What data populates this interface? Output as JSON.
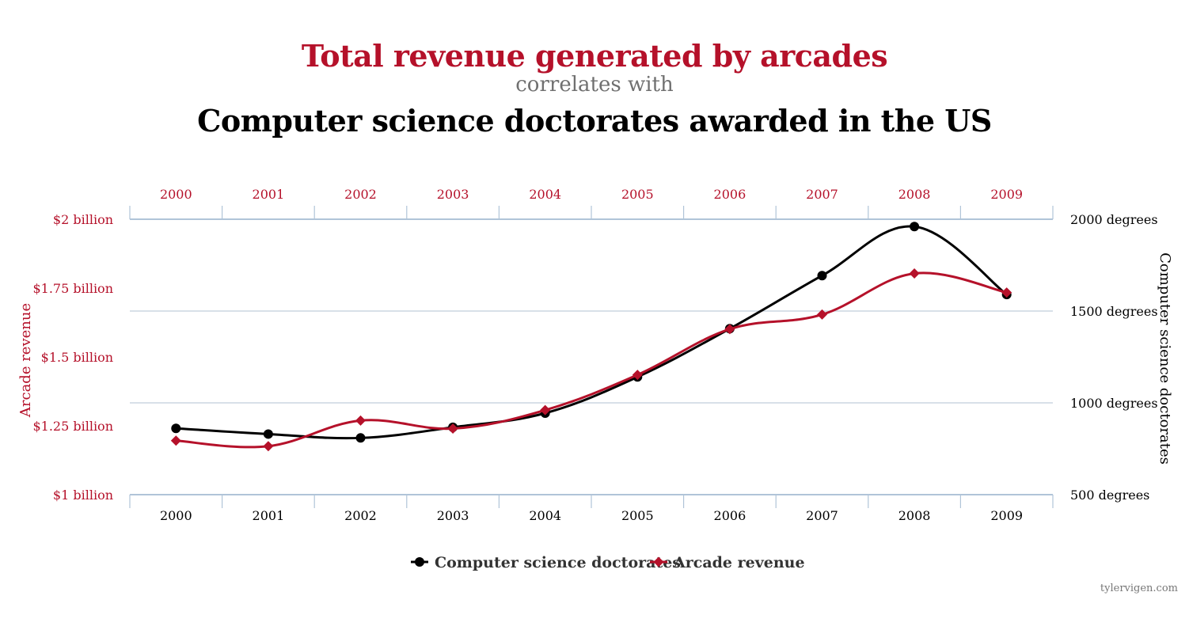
{
  "title": {
    "main": "Total revenue generated by arcades",
    "connector": "correlates with",
    "secondary": "Computer science doctorates awarded in the US"
  },
  "credit": "tylervigen.com",
  "colors": {
    "arcade": "#b5112a",
    "doctorates": "#000000",
    "grid": "#ccd6e0",
    "axis_line": "#b0c4d8"
  },
  "chart_data": {
    "type": "line",
    "x": [
      "2000",
      "2001",
      "2002",
      "2003",
      "2004",
      "2005",
      "2006",
      "2007",
      "2008",
      "2009"
    ],
    "series": [
      {
        "name": "Computer science doctorates",
        "axis": "right",
        "marker": "circle",
        "color": "#000000",
        "values": [
          861,
          830,
          809,
          867,
          944,
          1141,
          1404,
          1693,
          1960,
          1590
        ]
      },
      {
        "name": "Arcade revenue",
        "axis": "left",
        "marker": "diamond",
        "color": "#b5112a",
        "values": [
          1.196,
          1.176,
          1.269,
          1.24,
          1.307,
          1.435,
          1.601,
          1.654,
          1.803,
          1.734
        ]
      }
    ],
    "left_axis": {
      "label": "Arcade revenue",
      "ylim": [
        1,
        2
      ],
      "ticks": [
        1,
        1.25,
        1.5,
        1.75,
        2
      ],
      "tick_labels": [
        "$1 billion",
        "$1.25 billion",
        "$1.5 billion",
        "$1.75 billion",
        "$2 billion"
      ]
    },
    "right_axis": {
      "label": "Computer science doctorates",
      "ylim": [
        500,
        2000
      ],
      "ticks": [
        500,
        1000,
        1500,
        2000
      ],
      "tick_labels": [
        "500 degrees",
        "1000 degrees",
        "1500 degrees",
        "2000 degrees"
      ]
    },
    "top_axis_labels": [
      "2000",
      "2001",
      "2002",
      "2003",
      "2004",
      "2005",
      "2006",
      "2007",
      "2008",
      "2009"
    ],
    "bottom_axis_labels": [
      "2000",
      "2001",
      "2002",
      "2003",
      "2004",
      "2005",
      "2006",
      "2007",
      "2008",
      "2009"
    ],
    "legend": {
      "position": "bottom-center",
      "items": [
        "Computer science doctorates",
        "Arcade revenue"
      ]
    },
    "grid": true
  }
}
